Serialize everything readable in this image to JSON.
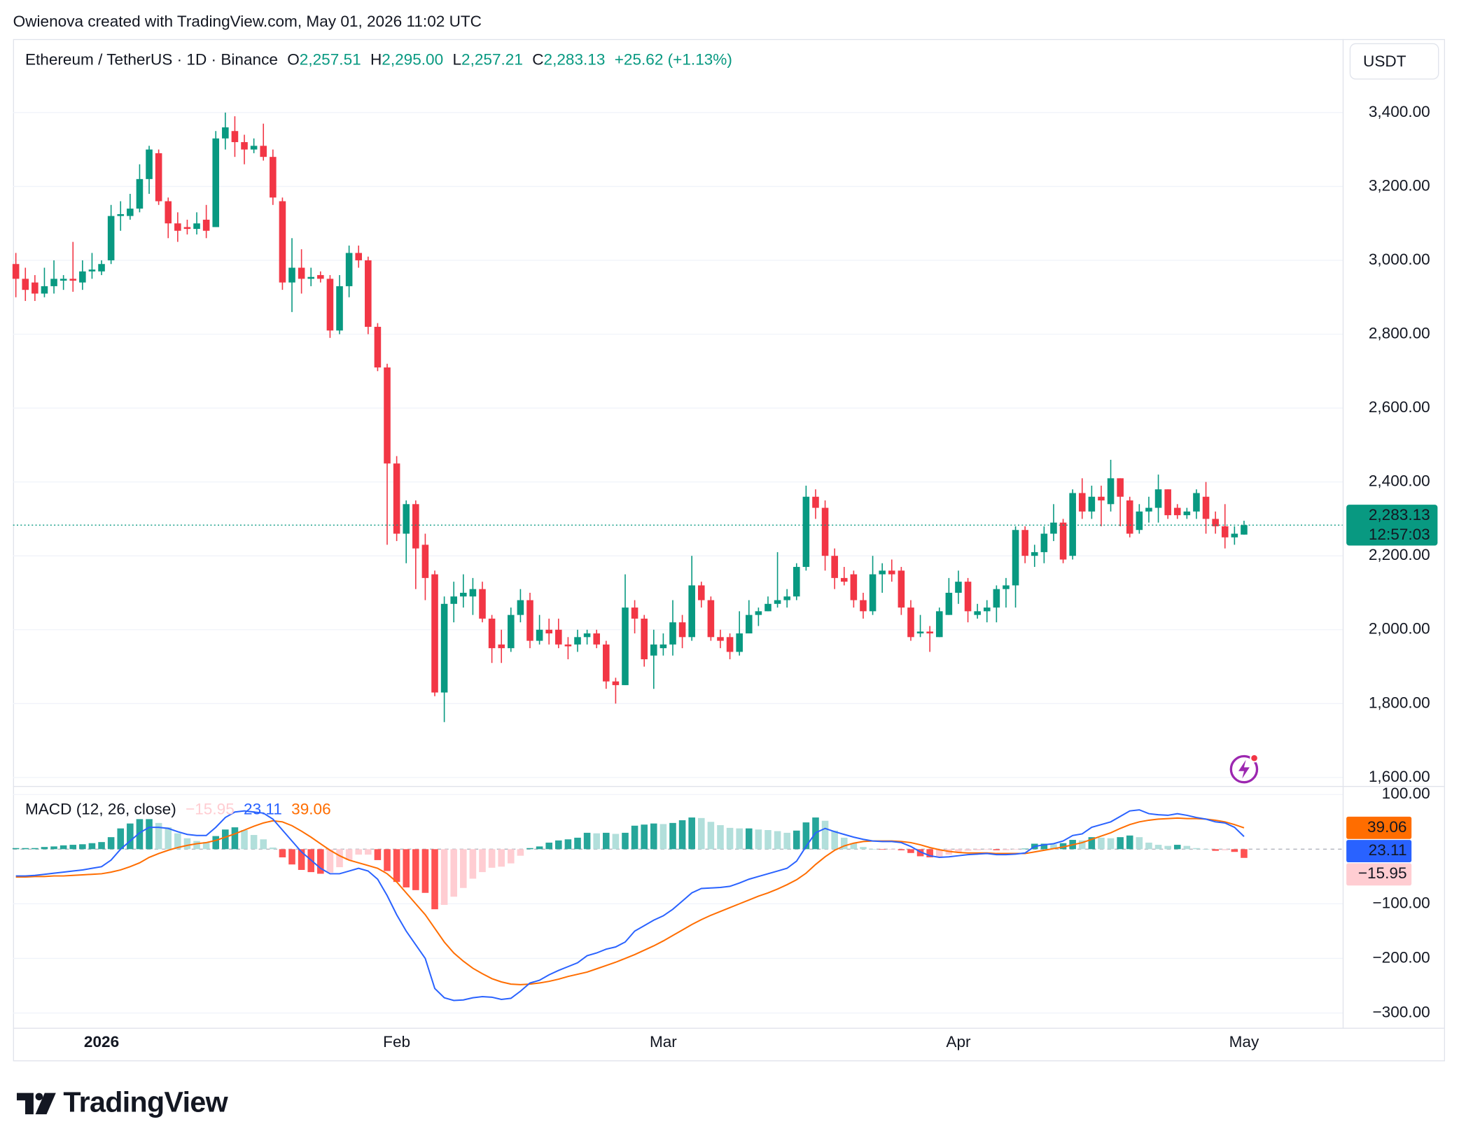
{
  "attribution": "Owienova created with TradingView.com, May 01, 2026 11:02 UTC",
  "branding": "TradingView",
  "chart_data": [
    {
      "type": "candlestick",
      "symbol": "Ethereum / TetherUS · 1D · Binance",
      "ohlc_legend": [
        {
          "key": "O",
          "text": "2,257.51"
        },
        {
          "key": "H",
          "text": "2,295.00"
        },
        {
          "key": "L",
          "text": "2,257.21"
        },
        {
          "key": "C",
          "text": "2,283.13"
        }
      ],
      "change": "+25.62 (+1.13%)",
      "currency": "USDT",
      "categories": [
        null,
        null,
        null,
        null,
        null,
        null,
        null,
        null,
        null,
        "2026",
        null,
        null,
        null,
        null,
        null,
        null,
        null,
        null,
        null,
        null,
        null,
        null,
        null,
        null,
        null,
        null,
        null,
        null,
        null,
        null,
        null,
        null,
        null,
        null,
        null,
        null,
        null,
        null,
        null,
        null,
        "Feb",
        null,
        null,
        null,
        null,
        null,
        null,
        null,
        null,
        null,
        null,
        null,
        null,
        null,
        null,
        null,
        null,
        null,
        null,
        null,
        null,
        null,
        null,
        null,
        null,
        null,
        null,
        null,
        "Mar",
        null,
        null,
        null,
        null,
        null,
        null,
        null,
        null,
        null,
        null,
        null,
        null,
        null,
        null,
        null,
        null,
        null,
        null,
        null,
        null,
        null,
        null,
        null,
        null,
        null,
        null,
        null,
        null,
        null,
        null,
        "Apr",
        null,
        null,
        null,
        null,
        null,
        null,
        null,
        null,
        null,
        null,
        null,
        null,
        null,
        null,
        null,
        null,
        null,
        null,
        null,
        null,
        null,
        null,
        null,
        null,
        null,
        null,
        null,
        null,
        null,
        "May"
      ],
      "open": [
        2990,
        2950,
        2940,
        2910,
        2930,
        2945,
        2950,
        2940,
        2970,
        2970,
        3000,
        3120,
        3120,
        3140,
        3220,
        3290,
        3160,
        3100,
        3090,
        3085,
        3110,
        3090,
        3330,
        3350,
        3320,
        3300,
        3310,
        3280,
        3160,
        2940,
        2980,
        2950,
        2960,
        2950,
        2810,
        2930,
        3020,
        3000,
        2820,
        2710,
        2450,
        2260,
        2340,
        2230,
        2150,
        1830,
        2070,
        2090,
        2090,
        2110,
        2030,
        1960,
        1950,
        2040,
        2080,
        1970,
        2000,
        2000,
        1960,
        1960,
        1980,
        1990,
        1960,
        1860,
        1850,
        2060,
        2030,
        1930,
        1950,
        1960,
        2020,
        1980,
        2120,
        2080,
        1980,
        1980,
        1940,
        1990,
        2040,
        2050,
        2070,
        2080,
        2090,
        2170,
        2360,
        2330,
        2200,
        2140,
        2150,
        2080,
        2050,
        2150,
        2160,
        2160,
        2060,
        1990,
        1995,
        1980,
        2040,
        2100,
        2130,
        2040,
        2050,
        2060,
        2110,
        2120,
        2270,
        2200,
        2210,
        2260,
        2290,
        2200,
        2370,
        2320,
        2360,
        2340,
        2410,
        2350,
        2270,
        2320,
        2330,
        2380,
        2330,
        2310,
        2320,
        2360,
        2300,
        2280,
        2250,
        2257.51
      ],
      "high": [
        3020,
        2980,
        2960,
        2980,
        3000,
        2960,
        3050,
        3000,
        3020,
        3000,
        3150,
        3160,
        3180,
        3260,
        3310,
        3300,
        3170,
        3130,
        3110,
        3130,
        3150,
        3350,
        3400,
        3390,
        3340,
        3330,
        3370,
        3300,
        3170,
        3060,
        3030,
        2980,
        2970,
        2960,
        2960,
        3040,
        3040,
        3010,
        2830,
        2720,
        2470,
        2350,
        2350,
        2260,
        2160,
        2090,
        2130,
        2150,
        2140,
        2130,
        2040,
        2000,
        2060,
        2110,
        2100,
        2040,
        2030,
        2030,
        1980,
        2000,
        2000,
        2000,
        1970,
        1870,
        2150,
        2080,
        2040,
        2000,
        1990,
        2080,
        2040,
        2200,
        2130,
        2090,
        2000,
        1990,
        2050,
        2080,
        2060,
        2090,
        2210,
        2110,
        2180,
        2390,
        2380,
        2350,
        2220,
        2170,
        2160,
        2100,
        2200,
        2180,
        2190,
        2170,
        2080,
        2040,
        2010,
        2060,
        2140,
        2160,
        2140,
        2070,
        2080,
        2120,
        2140,
        2280,
        2280,
        2230,
        2280,
        2340,
        2300,
        2380,
        2410,
        2390,
        2390,
        2460,
        2410,
        2360,
        2340,
        2360,
        2420,
        2380,
        2340,
        2330,
        2380,
        2400,
        2320,
        2340,
        2280,
        2295
      ],
      "low": [
        2900,
        2890,
        2890,
        2900,
        2910,
        2920,
        2915,
        2920,
        2950,
        2960,
        2990,
        3080,
        3110,
        3130,
        3180,
        3150,
        3060,
        3050,
        3070,
        3070,
        3060,
        3090,
        3300,
        3280,
        3260,
        3290,
        3270,
        3150,
        2920,
        2860,
        2910,
        2930,
        2940,
        2790,
        2800,
        2900,
        2980,
        2800,
        2700,
        2230,
        2240,
        2180,
        2110,
        2080,
        1820,
        1750,
        2020,
        2060,
        2040,
        2020,
        1910,
        1910,
        1940,
        2020,
        1950,
        1960,
        1960,
        1950,
        1920,
        1940,
        1960,
        1950,
        1840,
        1800,
        1850,
        1990,
        1900,
        1840,
        1930,
        1930,
        1950,
        1970,
        2060,
        1970,
        1950,
        1920,
        1930,
        1990,
        2010,
        2050,
        2060,
        2060,
        2080,
        2160,
        2300,
        2160,
        2110,
        2120,
        2060,
        2030,
        2040,
        2100,
        2130,
        2040,
        1970,
        1980,
        1940,
        1980,
        2040,
        2070,
        2020,
        2030,
        2020,
        2020,
        2060,
        2060,
        2180,
        2170,
        2180,
        2240,
        2180,
        2190,
        2300,
        2300,
        2280,
        2320,
        2280,
        2250,
        2260,
        2290,
        2290,
        2300,
        2300,
        2300,
        2300,
        2260,
        2260,
        2220,
        2230,
        2257.21
      ],
      "close": [
        2950,
        2920,
        2910,
        2930,
        2950,
        2950,
        2945,
        2970,
        2975,
        2990,
        3120,
        3125,
        3140,
        3220,
        3300,
        3160,
        3100,
        3080,
        3085,
        3100,
        3080,
        3330,
        3360,
        3320,
        3300,
        3310,
        3280,
        3170,
        2940,
        2980,
        2950,
        2955,
        2950,
        2810,
        2930,
        3020,
        3000,
        2820,
        2710,
        2450,
        2260,
        2340,
        2220,
        2140,
        1830,
        2070,
        2090,
        2100,
        2110,
        2030,
        1950,
        1950,
        2040,
        2080,
        1970,
        2000,
        1990,
        1960,
        1955,
        1980,
        1990,
        1960,
        1860,
        1850,
        2060,
        2030,
        1920,
        1960,
        1960,
        2020,
        1980,
        2120,
        2080,
        1980,
        1970,
        1940,
        1990,
        2040,
        2050,
        2070,
        2080,
        2090,
        2170,
        2360,
        2330,
        2200,
        2140,
        2130,
        2080,
        2050,
        2150,
        2160,
        2150,
        2060,
        1980,
        1995,
        1990,
        2050,
        2100,
        2130,
        2050,
        2050,
        2060,
        2110,
        2120,
        2270,
        2200,
        2210,
        2260,
        2290,
        2190,
        2370,
        2320,
        2360,
        2350,
        2410,
        2360,
        2260,
        2320,
        2330,
        2380,
        2310,
        2310,
        2320,
        2370,
        2300,
        2280,
        2250,
        2260,
        2283.13
      ],
      "up_color": "#089981",
      "down_color": "#f23645",
      "ylim": [
        1577,
        3599
      ],
      "yticks": [
        {
          "value": 1600,
          "label": "1,600.00"
        },
        {
          "value": 1800,
          "label": "1,800.00"
        },
        {
          "value": 2000,
          "label": "2,000.00"
        },
        {
          "value": 2200,
          "label": "2,200.00"
        },
        {
          "value": 2400,
          "label": "2,400.00"
        },
        {
          "value": 2600,
          "label": "2,600.00"
        },
        {
          "value": 2800,
          "label": "2,800.00"
        },
        {
          "value": 3000,
          "label": "3,000.00"
        },
        {
          "value": 3200,
          "label": "3,200.00"
        },
        {
          "value": 3400,
          "label": "3,400.00"
        }
      ],
      "last_price": {
        "value": 2283.13,
        "label": "2,283.13",
        "countdown": "12:57:03"
      },
      "grid": true
    },
    {
      "type": "macd",
      "title": "MACD (12, 26, close)",
      "histogram": {
        "values": [
          2,
          2,
          2,
          4,
          5,
          7,
          8,
          9,
          11,
          13,
          22,
          38,
          47,
          55,
          55,
          48,
          40,
          29,
          20,
          15,
          13,
          24,
          36,
          40,
          35,
          26,
          18,
          3,
          -15,
          -28,
          -38,
          -42,
          -45,
          -43,
          -33,
          -20,
          -10,
          -10,
          -20,
          -40,
          -60,
          -70,
          -75,
          -80,
          -110,
          -102,
          -87,
          -71,
          -54,
          -42,
          -34,
          -32,
          -26,
          -12,
          2,
          5,
          12,
          16,
          18,
          21,
          30,
          29,
          30,
          28,
          30,
          43,
          45,
          47,
          46,
          48,
          53,
          58,
          57,
          50,
          44,
          39,
          38,
          38,
          36,
          35,
          33,
          30,
          34,
          49,
          58,
          52,
          34,
          21,
          11,
          4,
          0,
          -1,
          -1,
          -2,
          -7,
          -13,
          -15,
          -14,
          -10,
          -6,
          -3,
          -2,
          -1,
          -2,
          -2,
          -1,
          1,
          10,
          10,
          9,
          11,
          17,
          16,
          22,
          21,
          20,
          22,
          25,
          22,
          12,
          8,
          6,
          8,
          6,
          2,
          0,
          -3,
          -2,
          -5,
          -15.95
        ],
        "last_label": "−15.95",
        "colors": [
          "#26a69a",
          "#b2dfdb",
          "#ffcdd2",
          "#ff5252"
        ]
      },
      "macd": {
        "values": [
          -49,
          -49,
          -48,
          -46,
          -44,
          -42,
          -40,
          -38,
          -35,
          -32,
          -20,
          0,
          15,
          30,
          40,
          40,
          38,
          32,
          27,
          25,
          25,
          40,
          58,
          68,
          70,
          68,
          66,
          55,
          35,
          15,
          -5,
          -20,
          -35,
          -45,
          -45,
          -40,
          -35,
          -40,
          -55,
          -85,
          -120,
          -150,
          -175,
          -200,
          -255,
          -272,
          -277,
          -276,
          -272,
          -270,
          -271,
          -275,
          -273,
          -260,
          -245,
          -240,
          -230,
          -222,
          -215,
          -208,
          -195,
          -190,
          -183,
          -179,
          -170,
          -150,
          -140,
          -130,
          -122,
          -110,
          -95,
          -80,
          -72,
          -71,
          -70,
          -68,
          -62,
          -55,
          -50,
          -45,
          -40,
          -35,
          -22,
          5,
          30,
          38,
          32,
          27,
          22,
          18,
          15,
          14,
          14,
          12,
          5,
          -5,
          -12,
          -15,
          -14,
          -12,
          -10,
          -9,
          -8,
          -10,
          -10,
          -9,
          -7,
          5,
          8,
          10,
          15,
          25,
          28,
          40,
          45,
          50,
          60,
          70,
          72,
          65,
          63,
          62,
          65,
          62,
          58,
          55,
          50,
          48,
          40,
          23.11
        ],
        "color": "#2962ff",
        "last_label": "23.11"
      },
      "signal": {
        "values": [
          -51,
          -51,
          -50,
          -50,
          -49,
          -49,
          -48,
          -47,
          -46,
          -45,
          -42,
          -38,
          -32,
          -25,
          -15,
          -8,
          -2,
          3,
          7,
          10,
          12,
          16,
          22,
          28,
          35,
          42,
          48,
          52,
          50,
          43,
          33,
          22,
          10,
          -2,
          -12,
          -20,
          -25,
          -30,
          -35,
          -45,
          -60,
          -80,
          -100,
          -120,
          -145,
          -170,
          -190,
          -205,
          -218,
          -228,
          -237,
          -243,
          -247,
          -248,
          -247,
          -245,
          -242,
          -238,
          -233,
          -229,
          -225,
          -219,
          -213,
          -207,
          -200,
          -193,
          -185,
          -177,
          -168,
          -158,
          -148,
          -138,
          -129,
          -121,
          -114,
          -107,
          -100,
          -93,
          -86,
          -80,
          -73,
          -65,
          -56,
          -44,
          -28,
          -14,
          -2,
          6,
          11,
          14,
          15,
          15,
          15,
          14,
          12,
          8,
          3,
          -1,
          -4,
          -6,
          -7,
          -7,
          -7,
          -8,
          -8,
          -8,
          -8,
          -5,
          -2,
          1,
          4,
          8,
          12,
          18,
          24,
          30,
          38,
          45,
          50,
          53,
          55,
          56,
          57,
          56,
          56,
          55,
          53,
          50,
          45,
          39.06
        ],
        "color": "#ff6d00",
        "last_label": "39.06"
      },
      "ylim": [
        -327,
        114
      ],
      "yticks": [
        {
          "value": 100,
          "label": "100.00"
        },
        {
          "value": -100,
          "label": "−100.00"
        },
        {
          "value": -200,
          "label": "−200.00"
        },
        {
          "value": -300,
          "label": "−300.00"
        }
      ],
      "grid": true
    }
  ]
}
